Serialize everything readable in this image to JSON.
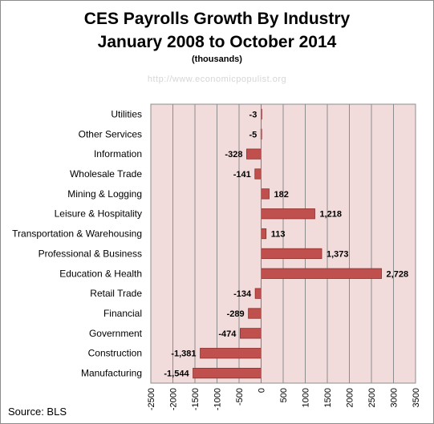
{
  "chart_data": {
    "type": "bar",
    "orientation": "horizontal",
    "title": "CES Payrolls Growth By Industry",
    "subtitle": "January 2008 to October 2014",
    "units": "(thousands)",
    "watermark": "http://www.economicpopulist.org",
    "source": "Source:  BLS",
    "categories": [
      "Utilities",
      "Other Services",
      "Information",
      "Wholesale Trade",
      "Mining & Logging",
      "Leisure & Hospitality",
      "Transportation & Warehousing",
      "Professional & Business",
      "Education & Health",
      "Retail Trade",
      "Financial",
      "Government",
      "Construction",
      "Manufacturing"
    ],
    "values": [
      -3,
      -5,
      -328,
      -141,
      182,
      1218,
      113,
      1373,
      2728,
      -134,
      -289,
      -474,
      -1381,
      -1544
    ],
    "value_labels": [
      "-3",
      "-5",
      "-328",
      "-141",
      "182",
      "1,218",
      "113",
      "1,373",
      "2,728",
      "-134",
      "-289",
      "-474",
      "-1,381",
      "-1,544"
    ],
    "xlim": [
      -2500,
      3500
    ],
    "xticks": [
      -2500,
      -2000,
      -1500,
      -1000,
      -500,
      0,
      500,
      1000,
      1500,
      2000,
      2500,
      3000,
      3500
    ],
    "grid": true,
    "bar_color": "#c0504d",
    "bar_edge_color": "#8b2f2c",
    "plot_background": "#f2dcdb"
  }
}
